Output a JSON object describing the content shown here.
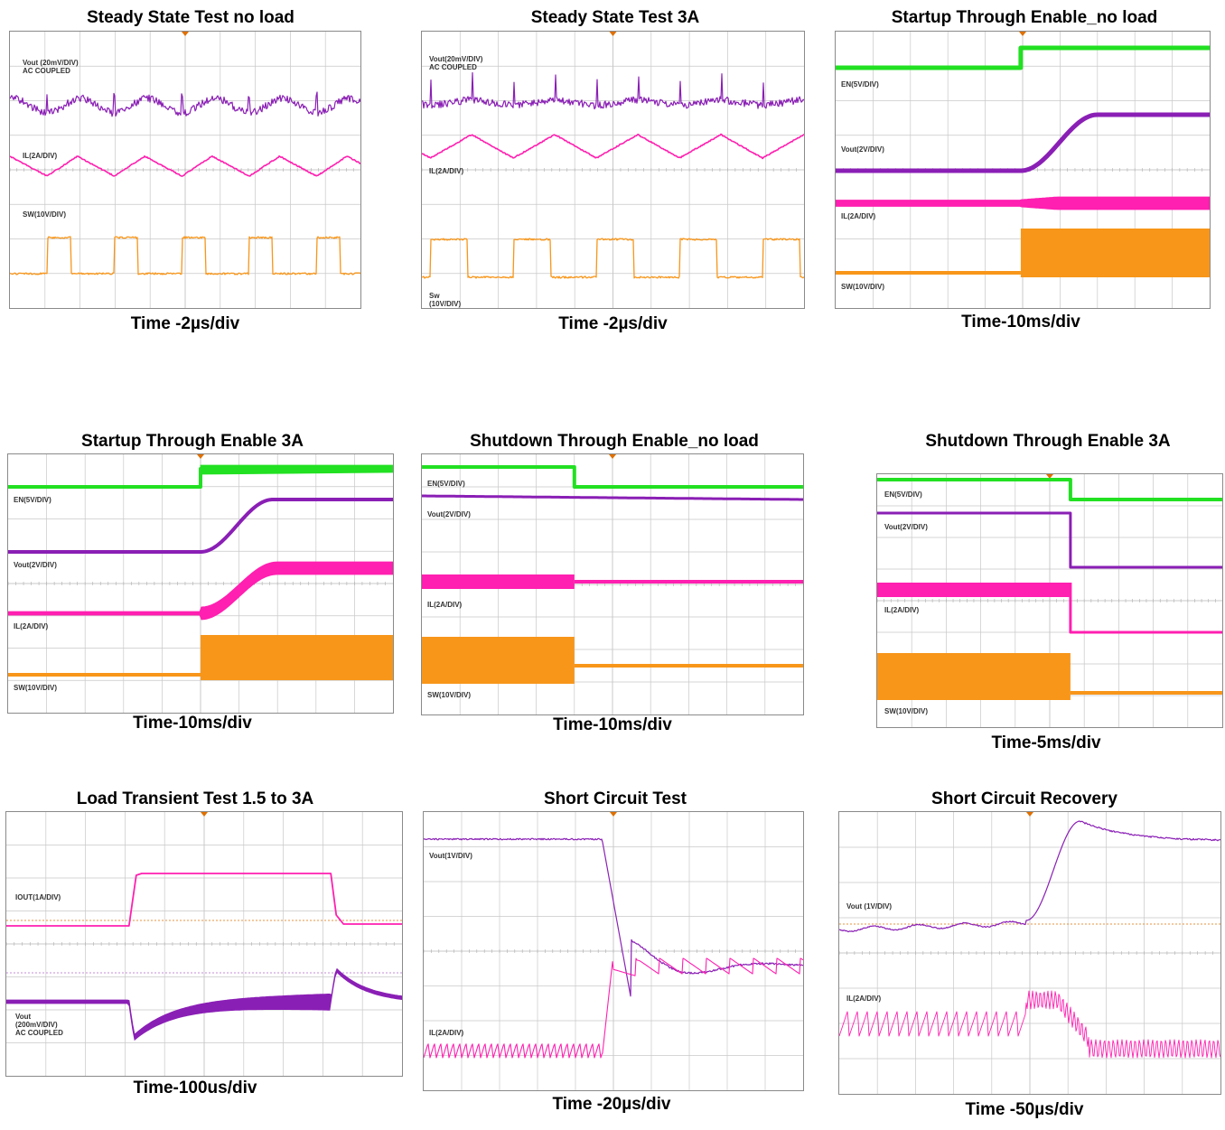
{
  "colors": {
    "en": "#22e022",
    "vout": "#8a1fb5",
    "il": "#ff1fb0",
    "sw": "#f8961a",
    "grid": "#c8c8c8",
    "gridDot": "#b0b0b0",
    "ref": "#e07000"
  },
  "panels": [
    {
      "title": "Steady State Test no load",
      "caption": "Time -2µs/div",
      "labels": [
        "Vout (20mV/DIV)\nAC COUPLED",
        "IL(2A/DIV)",
        "SW(10V/DIV)"
      ],
      "chart_data": {
        "type": "line",
        "time_per_div": "2µs",
        "traces": [
          {
            "name": "Vout",
            "shape": "ripple_spikes",
            "periods": 5
          },
          {
            "name": "IL",
            "shape": "triangle",
            "periods": 5
          },
          {
            "name": "SW",
            "shape": "square",
            "periods": 5
          }
        ]
      }
    },
    {
      "title": "Steady State Test 3A",
      "caption": "Time -2µs/div",
      "labels": [
        "Vout(20mV/DIV)\nAC COUPLED",
        "IL(2A/DIV)",
        "Sw\n(10V/DIV)"
      ],
      "chart_data": {
        "type": "line",
        "time_per_div": "2µs",
        "traces": [
          {
            "name": "Vout",
            "shape": "ripple_spikes",
            "periods": 5
          },
          {
            "name": "IL",
            "shape": "triangle",
            "periods": 5
          },
          {
            "name": "SW",
            "shape": "square",
            "periods": 5
          }
        ]
      }
    },
    {
      "title": "Startup Through Enable_no load",
      "caption": "Time-10ms/div",
      "labels": [
        "EN(5V/DIV)",
        "Vout(2V/DIV)",
        "IL(2A/DIV)",
        "SW(10V/DIV)"
      ],
      "chart_data": {
        "type": "line",
        "time_per_div": "10ms",
        "event": "enable_rise",
        "traces": [
          {
            "name": "EN",
            "shape": "step_up"
          },
          {
            "name": "Vout",
            "shape": "soft_start_rise"
          },
          {
            "name": "IL",
            "shape": "switching_band"
          },
          {
            "name": "SW",
            "shape": "switching_block_on"
          }
        ]
      }
    },
    {
      "title": "Startup Through Enable 3A",
      "caption": "Time-10ms/div",
      "labels": [
        "EN(5V/DIV)",
        "Vout(2V/DIV)",
        "IL(2A/DIV)",
        "SW(10V/DIV)"
      ],
      "chart_data": {
        "type": "line",
        "time_per_div": "10ms",
        "event": "enable_rise",
        "traces": [
          {
            "name": "EN",
            "shape": "step_up"
          },
          {
            "name": "Vout",
            "shape": "soft_start_rise"
          },
          {
            "name": "IL",
            "shape": "current_rise_band"
          },
          {
            "name": "SW",
            "shape": "switching_block_on"
          }
        ]
      }
    },
    {
      "title": "Shutdown Through Enable_no load",
      "caption": "Time-10ms/div",
      "labels": [
        "EN(5V/DIV)",
        "Vout(2V/DIV)",
        "IL(2A/DIV)",
        "SW(10V/DIV)"
      ],
      "chart_data": {
        "type": "line",
        "time_per_div": "10ms",
        "event": "enable_fall",
        "traces": [
          {
            "name": "EN",
            "shape": "step_down"
          },
          {
            "name": "Vout",
            "shape": "slow_decay"
          },
          {
            "name": "IL",
            "shape": "band_to_flat"
          },
          {
            "name": "SW",
            "shape": "switching_block_off"
          }
        ]
      }
    },
    {
      "title": "Shutdown Through Enable 3A",
      "caption": "Time-5ms/div",
      "labels": [
        "EN(5V/DIV)",
        "Vout(2V/DIV)",
        "IL(2A/DIV)",
        "SW(10V/DIV)"
      ],
      "chart_data": {
        "type": "line",
        "time_per_div": "5ms",
        "event": "enable_fall",
        "traces": [
          {
            "name": "EN",
            "shape": "step_down"
          },
          {
            "name": "Vout",
            "shape": "fast_drop"
          },
          {
            "name": "IL",
            "shape": "band_drop"
          },
          {
            "name": "SW",
            "shape": "switching_block_off"
          }
        ]
      }
    },
    {
      "title": "Load Transient Test 1.5 to 3A",
      "caption": "Time-100us/div",
      "labels": [
        "IOUT(1A/DIV)",
        "Vout\n(200mV/DIV)\nAC COUPLED"
      ],
      "chart_data": {
        "type": "line",
        "time_per_div": "100us",
        "load_step": [
          "1.5A",
          "3A"
        ],
        "traces": [
          {
            "name": "IOUT",
            "shape": "pulse"
          },
          {
            "name": "Vout",
            "shape": "undershoot_overshoot"
          }
        ]
      }
    },
    {
      "title": "Short Circuit Test",
      "caption": "Time -20µs/div",
      "labels": [
        "Vout(1V/DIV)",
        "IL(2A/DIV)"
      ],
      "chart_data": {
        "type": "line",
        "time_per_div": "20µs",
        "event": "short_applied",
        "traces": [
          {
            "name": "Vout",
            "shape": "collapse"
          },
          {
            "name": "IL",
            "shape": "ripple_to_hiccup"
          }
        ]
      }
    },
    {
      "title": "Short Circuit Recovery",
      "caption": "Time -50µs/div",
      "labels": [
        "Vout (1V/DIV)",
        "IL(2A/DIV)"
      ],
      "chart_data": {
        "type": "line",
        "time_per_div": "50µs",
        "event": "short_removed",
        "traces": [
          {
            "name": "Vout",
            "shape": "recovery_rise"
          },
          {
            "name": "IL",
            "shape": "ripple_recovery"
          }
        ]
      }
    }
  ]
}
